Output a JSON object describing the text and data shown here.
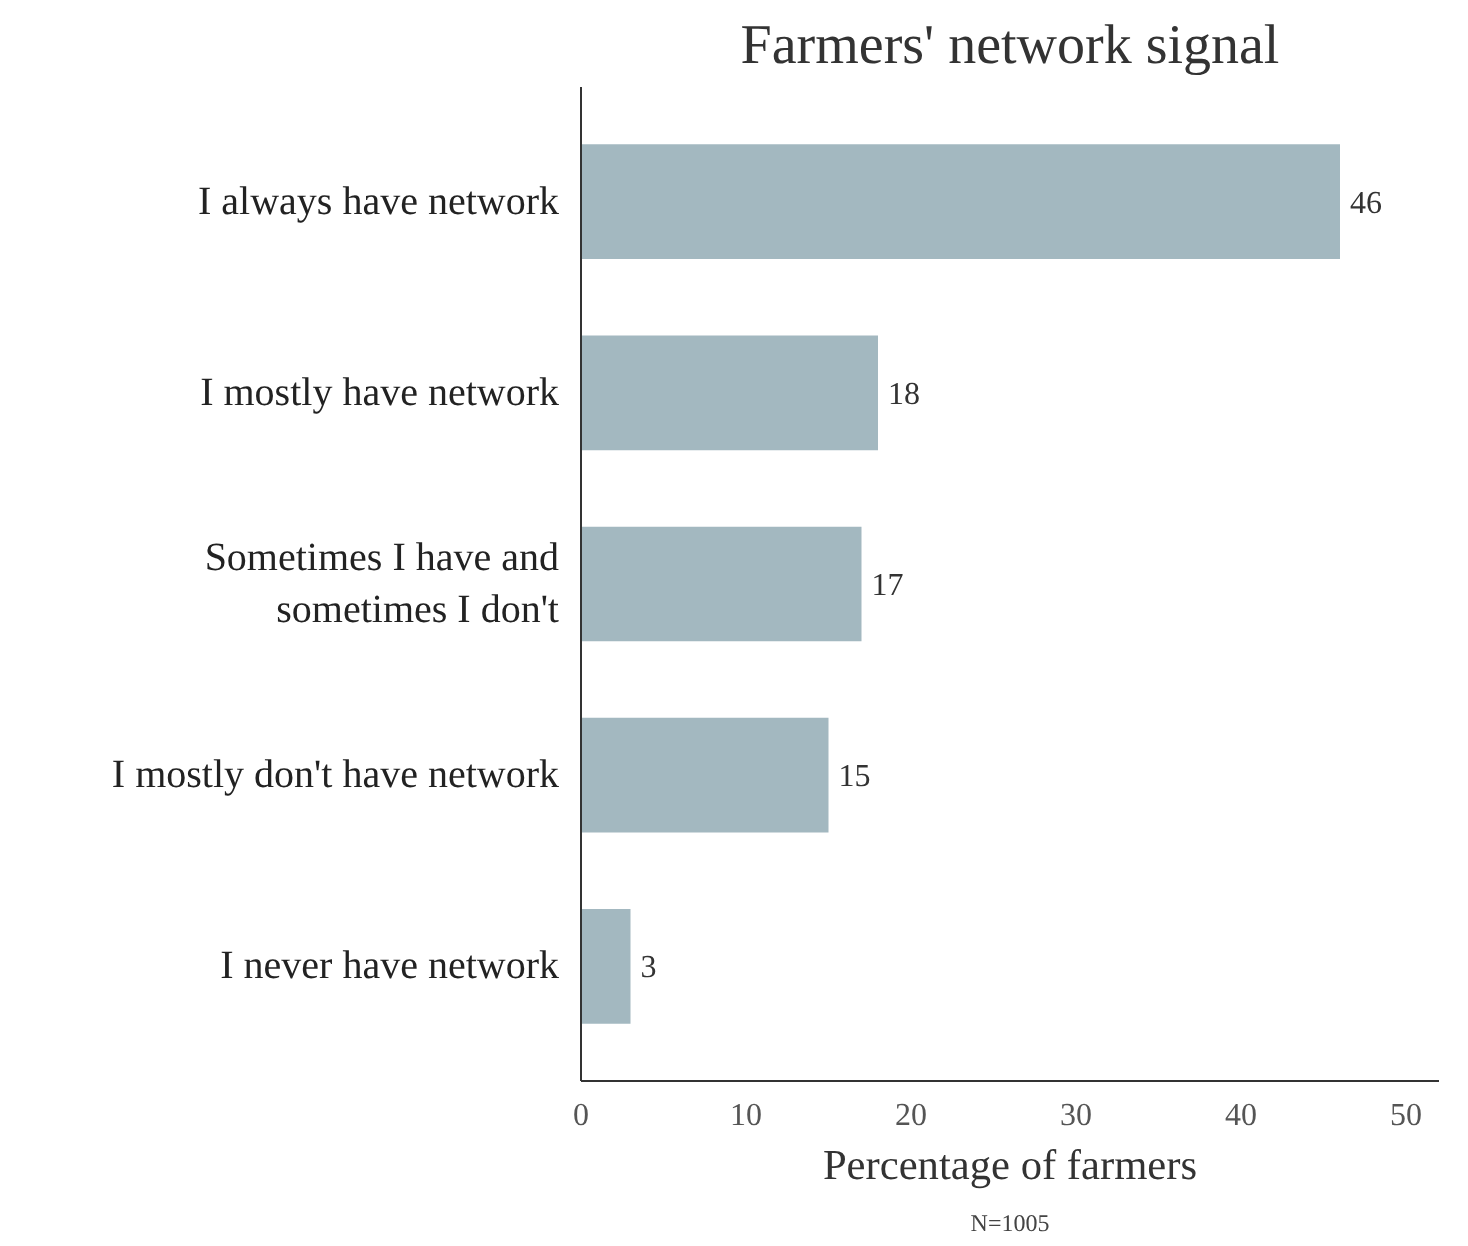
{
  "chart_data": {
    "type": "bar",
    "orientation": "horizontal",
    "title": "Farmers' network signal",
    "xlabel": "Percentage of farmers",
    "categories": [
      "I always have network",
      "I mostly have network",
      "Sometimes I have and\nsometimes I don't",
      "I mostly don't have network",
      "I never have network"
    ],
    "values": [
      46,
      18,
      17,
      15,
      3
    ],
    "color": "#a3b8c0",
    "xlim": [
      0,
      52
    ],
    "xticks": [
      0,
      10,
      20,
      30,
      40,
      50
    ],
    "data_labels": true,
    "grid": false,
    "annotations": [
      "N=1005"
    ]
  }
}
